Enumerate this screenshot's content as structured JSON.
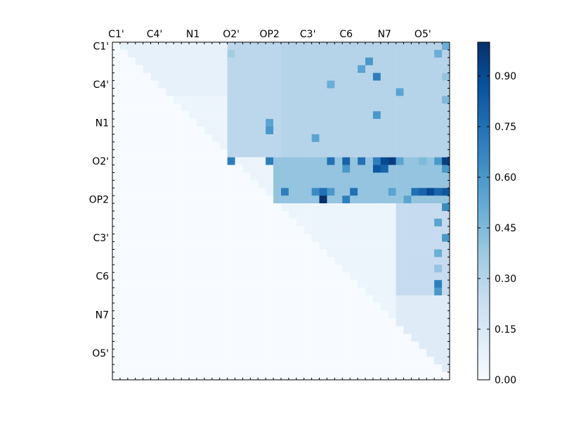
{
  "chart_data": {
    "type": "heatmap",
    "title": "",
    "xlabel": "",
    "ylabel": "",
    "size": 44,
    "x_tick_labels": [
      "C1'",
      "C4'",
      "N1",
      "O2'",
      "OP2",
      "C3'",
      "C6",
      "N7",
      "O5'"
    ],
    "y_tick_labels": [
      "C1'",
      "C4'",
      "N1",
      "O2'",
      "OP2",
      "C3'",
      "C6",
      "N7",
      "O5'"
    ],
    "tick_step": 5,
    "tick_offset": 0.5,
    "colorbar": {
      "min": 0.0,
      "max": 1.0,
      "ticks": [
        "0.00",
        "0.15",
        "0.30",
        "0.45",
        "0.60",
        "0.75",
        "0.90"
      ],
      "tick_values": [
        0.0,
        0.15,
        0.3,
        0.45,
        0.6,
        0.75,
        0.9
      ],
      "colormap": "Blues"
    },
    "upper_triangle_base": 0.05,
    "block_values": [
      {
        "rows": [
          0,
          7
        ],
        "cols": [
          1,
          15
        ],
        "value": 0.08
      },
      {
        "rows": [
          0,
          15
        ],
        "cols": [
          15,
          22
        ],
        "value": 0.28
      },
      {
        "rows": [
          0,
          15
        ],
        "cols": [
          22,
          44
        ],
        "value": 0.3
      },
      {
        "rows": [
          15,
          21
        ],
        "cols": [
          21,
          44
        ],
        "value": 0.4
      },
      {
        "rows": [
          21,
          33
        ],
        "cols": [
          37,
          44
        ],
        "value": 0.25
      },
      {
        "rows": [
          33,
          44
        ],
        "cols": [
          37,
          44
        ],
        "value": 0.12
      }
    ],
    "cells": [
      [
        15,
        15,
        0.7
      ],
      [
        15,
        20,
        0.7
      ],
      [
        15,
        28,
        0.75
      ],
      [
        15,
        30,
        0.8
      ],
      [
        15,
        32,
        0.75
      ],
      [
        15,
        34,
        0.7
      ],
      [
        15,
        35,
        0.9
      ],
      [
        15,
        36,
        0.95
      ],
      [
        15,
        37,
        0.55
      ],
      [
        15,
        40,
        0.45
      ],
      [
        15,
        42,
        0.6
      ],
      [
        15,
        43,
        0.95
      ],
      [
        16,
        30,
        0.6
      ],
      [
        16,
        34,
        0.85
      ],
      [
        16,
        35,
        0.8
      ],
      [
        16,
        43,
        0.6
      ],
      [
        19,
        22,
        0.7
      ],
      [
        19,
        26,
        0.65
      ],
      [
        19,
        27,
        0.75
      ],
      [
        19,
        28,
        0.6
      ],
      [
        19,
        31,
        0.75
      ],
      [
        19,
        36,
        0.55
      ],
      [
        19,
        39,
        0.75
      ],
      [
        19,
        40,
        0.8
      ],
      [
        19,
        41,
        0.9
      ],
      [
        19,
        42,
        0.8
      ],
      [
        19,
        43,
        0.85
      ],
      [
        20,
        27,
        1.0
      ],
      [
        20,
        30,
        0.7
      ],
      [
        20,
        38,
        0.55
      ],
      [
        21,
        43,
        0.65
      ],
      [
        23,
        42,
        0.55
      ],
      [
        25,
        43,
        0.6
      ],
      [
        27,
        42,
        0.5
      ],
      [
        31,
        42,
        0.7
      ],
      [
        32,
        42,
        0.6
      ],
      [
        29,
        42,
        0.4
      ],
      [
        1,
        15,
        0.35
      ],
      [
        2,
        33,
        0.6
      ],
      [
        4,
        34,
        0.7
      ],
      [
        6,
        37,
        0.55
      ],
      [
        9,
        34,
        0.6
      ],
      [
        10,
        20,
        0.55
      ],
      [
        11,
        20,
        0.6
      ],
      [
        12,
        26,
        0.55
      ],
      [
        3,
        32,
        0.55
      ],
      [
        5,
        28,
        0.5
      ],
      [
        2,
        44,
        0.5
      ],
      [
        7,
        43,
        0.45
      ],
      [
        4,
        43,
        0.4
      ],
      [
        0,
        43,
        0.5
      ],
      [
        1,
        42,
        0.5
      ]
    ]
  }
}
